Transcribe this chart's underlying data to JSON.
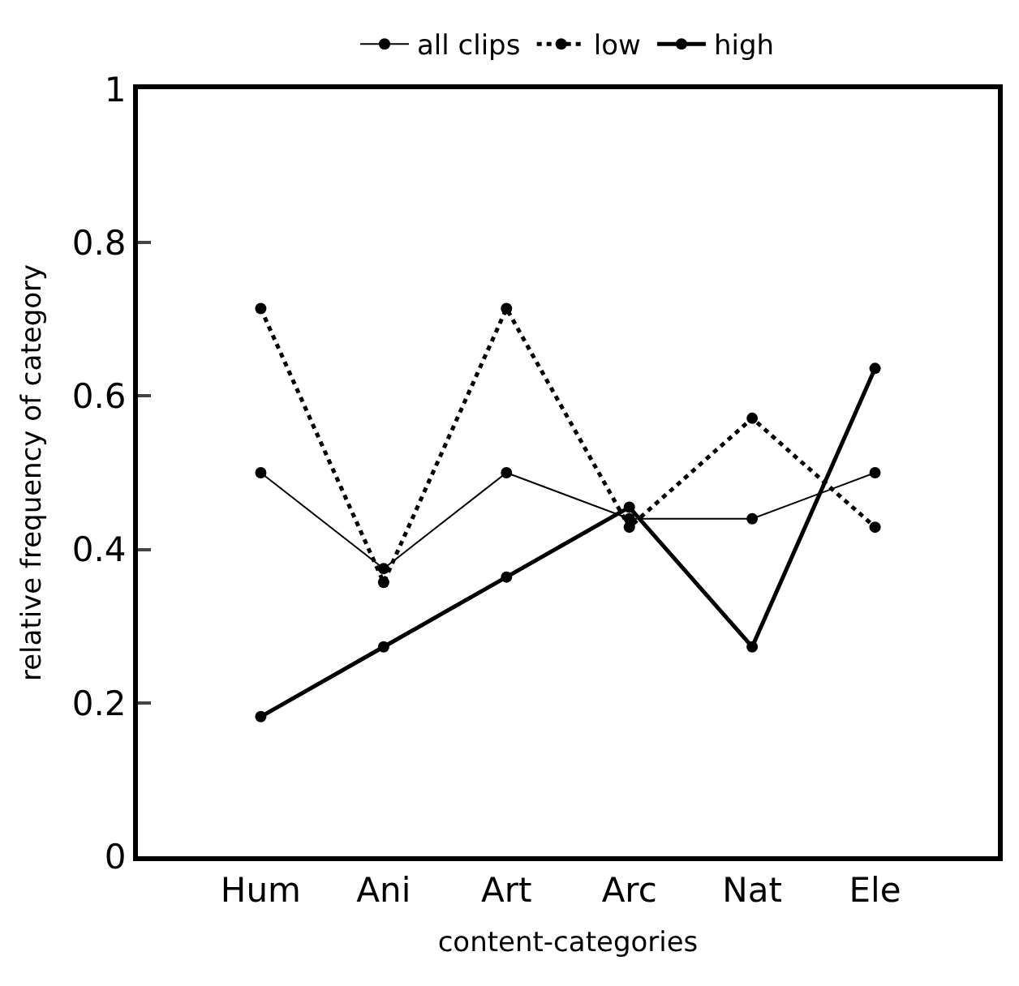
{
  "chart_data": {
    "type": "line",
    "xlabel": "content-categories",
    "ylabel": "relative frequency of category",
    "categories": [
      "Hum",
      "Ani",
      "Art",
      "Arc",
      "Nat",
      "Ele"
    ],
    "series": [
      {
        "name": "all clips",
        "color": "#000000",
        "line_style": "solid",
        "values": [
          0.5,
          0.375,
          0.5,
          0.44,
          0.44,
          0.5
        ]
      },
      {
        "name": "low",
        "color": "#000000",
        "line_style": "dotted",
        "values": [
          0.714,
          0.357,
          0.714,
          0.429,
          0.571,
          0.429
        ]
      },
      {
        "name": "high",
        "color": "#000000",
        "line_style": "solid",
        "values": [
          0.182,
          0.273,
          0.364,
          0.455,
          0.273,
          0.636
        ]
      }
    ],
    "ylim": [
      0,
      1
    ],
    "yticks": [
      0,
      0.2,
      0.4,
      0.6,
      0.8,
      1
    ],
    "marker": "circle",
    "legend": "top"
  }
}
